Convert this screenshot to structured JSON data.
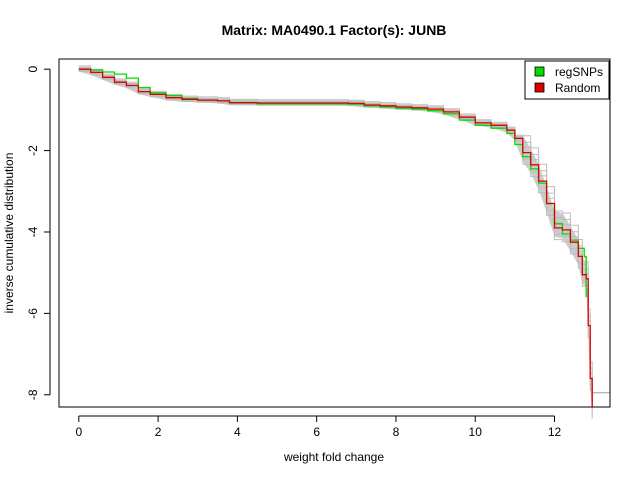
{
  "chart_data": {
    "type": "line",
    "title": "Matrix: MA0490.1 Factor(s): JUNB",
    "xlabel": "weight fold change",
    "ylabel": "inverse cumulative distribution",
    "xlim": [
      -0.5,
      13.4
    ],
    "ylim": [
      -8.3,
      0.25
    ],
    "x_ticks": [
      0,
      2,
      4,
      6,
      8,
      10,
      12
    ],
    "y_ticks": [
      0,
      -2,
      -4,
      -6,
      -8
    ],
    "legend_position": "top-right",
    "colors": {
      "regSNPs": "#00dd00",
      "Random": "#dd0000",
      "background_sims": "#bdbdbd",
      "sim_band": "#8c8c8c"
    },
    "series": [
      {
        "name": "regSNPs",
        "x": [
          0,
          0.3,
          0.6,
          0.9,
          1.2,
          1.5,
          1.8,
          2.2,
          2.6,
          3.0,
          3.5,
          3.8,
          4.5,
          5.5,
          6.5,
          6.8,
          7.2,
          7.6,
          8.0,
          8.4,
          8.8,
          9.2,
          9.6,
          10.0,
          10.4,
          10.8,
          11.0,
          11.2,
          11.4,
          11.6,
          11.8,
          12.0,
          12.2,
          12.4,
          12.6,
          12.75,
          12.8
        ],
        "y": [
          0,
          -0.02,
          -0.07,
          -0.12,
          -0.22,
          -0.45,
          -0.58,
          -0.65,
          -0.72,
          -0.76,
          -0.78,
          -0.83,
          -0.85,
          -0.85,
          -0.85,
          -0.86,
          -0.9,
          -0.93,
          -0.96,
          -0.98,
          -1.02,
          -1.1,
          -1.25,
          -1.38,
          -1.45,
          -1.58,
          -1.85,
          -2.15,
          -2.45,
          -2.8,
          -3.3,
          -3.8,
          -4.05,
          -4.2,
          -4.4,
          -4.6,
          -5.6
        ]
      },
      {
        "name": "Random",
        "x": [
          0,
          0.3,
          0.6,
          0.9,
          1.2,
          1.5,
          1.8,
          2.2,
          2.6,
          3.0,
          3.5,
          3.8,
          4.5,
          5.5,
          6.5,
          6.8,
          7.2,
          7.6,
          8.0,
          8.4,
          8.8,
          9.2,
          9.6,
          10.0,
          10.4,
          10.8,
          11.0,
          11.2,
          11.4,
          11.6,
          11.8,
          12.0,
          12.2,
          12.4,
          12.6,
          12.7,
          12.8,
          12.85,
          12.9,
          12.95
        ],
        "y": [
          0,
          -0.08,
          -0.2,
          -0.32,
          -0.4,
          -0.55,
          -0.62,
          -0.7,
          -0.74,
          -0.76,
          -0.78,
          -0.82,
          -0.83,
          -0.83,
          -0.83,
          -0.84,
          -0.88,
          -0.9,
          -0.93,
          -0.95,
          -0.98,
          -1.05,
          -1.18,
          -1.32,
          -1.38,
          -1.5,
          -1.7,
          -2.05,
          -2.35,
          -2.75,
          -3.3,
          -3.9,
          -3.95,
          -4.25,
          -4.6,
          -5.05,
          -5.15,
          -6.3,
          -7.6,
          -8.3
        ]
      }
    ]
  },
  "legend": {
    "items": [
      {
        "label": "regSNPs",
        "color": "#00dd00"
      },
      {
        "label": "Random",
        "color": "#dd0000"
      }
    ]
  }
}
